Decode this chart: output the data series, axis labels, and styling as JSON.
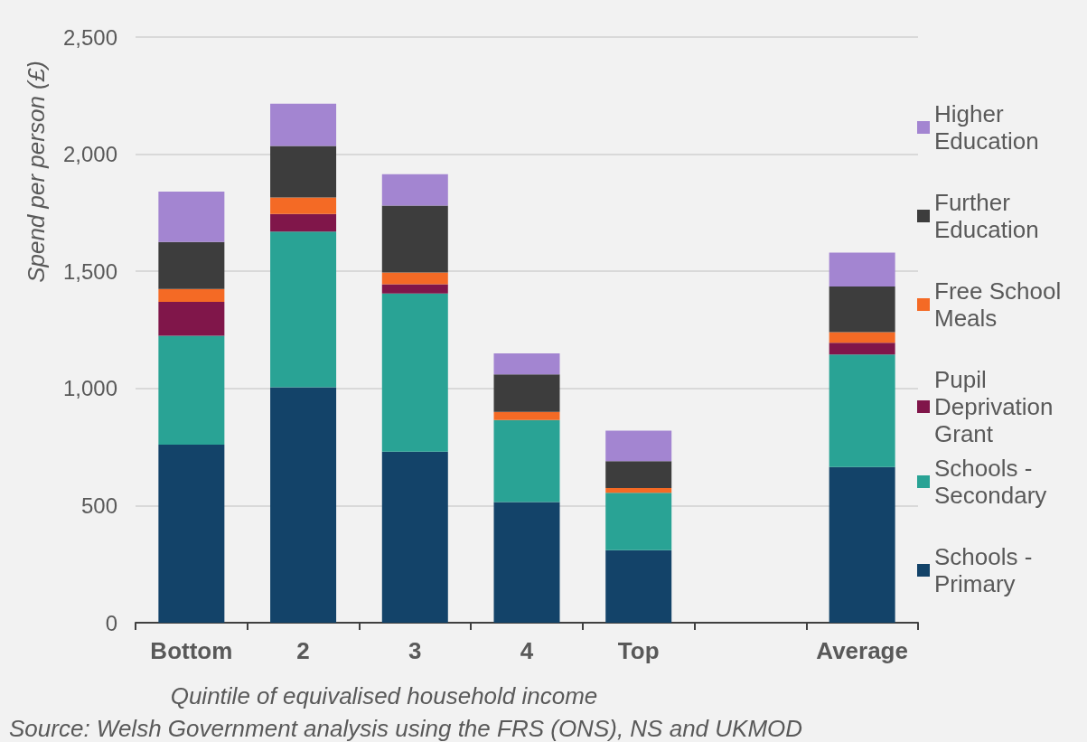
{
  "chart_data": {
    "type": "bar",
    "stacked": true,
    "ylabel": "Spend per person (£)",
    "xlabel": "Quintile of equivalised household income",
    "annotations": [
      "Source: Welsh Government analysis using the FRS (ONS), NS and UKMOD"
    ],
    "categories": [
      "Bottom",
      "2",
      "3",
      "4",
      "Top",
      null,
      "Average"
    ],
    "series": [
      {
        "name": "Schools - Primary",
        "color": "#134369",
        "values": [
          760,
          1005,
          730,
          515,
          310,
          null,
          665
        ]
      },
      {
        "name": "Schools - Secondary",
        "color": "#29a395",
        "values": [
          465,
          665,
          675,
          350,
          245,
          null,
          480
        ]
      },
      {
        "name": "Pupil Deprivation Grant",
        "color": "#80164a",
        "values": [
          145,
          75,
          40,
          0,
          0,
          null,
          50
        ]
      },
      {
        "name": "Free School Meals",
        "color": "#f46a25",
        "values": [
          55,
          70,
          50,
          35,
          20,
          null,
          45
        ]
      },
      {
        "name": "Further Education",
        "color": "#3d3d3d",
        "values": [
          200,
          220,
          285,
          160,
          115,
          null,
          195
        ]
      },
      {
        "name": "Higher Education",
        "color": "#a385d1",
        "values": [
          215,
          180,
          135,
          90,
          130,
          null,
          145
        ]
      }
    ],
    "ylim": [
      0,
      2500
    ],
    "yticks": [
      0,
      500,
      {
        "value": 1000,
        "label": "1,000"
      },
      {
        "value": 1500,
        "label": "1,500"
      },
      {
        "value": 2000,
        "label": "2,000"
      },
      {
        "value": 2500,
        "label": "2,500"
      }
    ],
    "grid": "y",
    "legend": "right"
  }
}
